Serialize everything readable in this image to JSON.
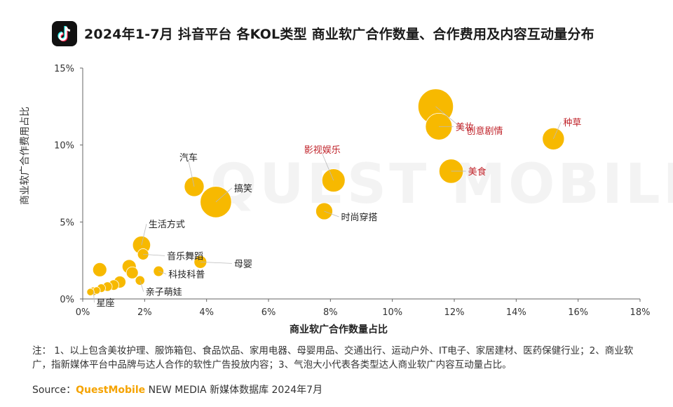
{
  "title": "2024年1-7月 抖音平台 各KOL类型 商业软广合作数量、合作费用及内容互动量分布",
  "logo_icon": "tiktok-logo-icon",
  "watermark": "QUEST MOBILE",
  "footnote": "注： 1、以上包含美妆护理、服饰箱包、食品饮品、家用电器、母婴用品、交通出行、运动户外、IT电子、家居建材、医药保健行业；2、商业软广，指新媒体平台中品牌与达人合作的软性广告投放内容；3、气泡大小代表各类型达人商业软广内容互动量占比。",
  "source": {
    "prefix": "Source：",
    "brand": "QuestMobile",
    "rest": " NEW MEDIA 新媒体数据库 2024年7月"
  },
  "colors": {
    "bubble": "#F7B900",
    "highlight_label": "#C0242B",
    "label": "#222222",
    "axis": "#666666"
  },
  "chart_data": {
    "type": "scatter",
    "xlabel": "商业软广合作数量占比",
    "ylabel": "商业软广合作费用占比",
    "xlim": [
      0,
      18
    ],
    "ylim": [
      0,
      15
    ],
    "x_ticks": [
      "0%",
      "2%",
      "4%",
      "6%",
      "8%",
      "10%",
      "12%",
      "14%",
      "16%",
      "18%"
    ],
    "y_ticks": [
      "0%",
      "5%",
      "10%",
      "15%"
    ],
    "grid": false,
    "points": [
      {
        "label": "创意剧情",
        "x": 11.4,
        "y": 12.5,
        "size": 7.0,
        "highlight": true
      },
      {
        "label": "美妆",
        "x": 11.5,
        "y": 11.2,
        "size": 4.0,
        "highlight": true
      },
      {
        "label": "种草",
        "x": 15.2,
        "y": 10.4,
        "size": 2.7,
        "highlight": true
      },
      {
        "label": "美食",
        "x": 11.9,
        "y": 8.3,
        "size": 3.3,
        "highlight": true
      },
      {
        "label": "影视娱乐",
        "x": 8.1,
        "y": 7.7,
        "size": 3.0,
        "highlight": true
      },
      {
        "label": "时尚穿搭",
        "x": 7.8,
        "y": 5.7,
        "size": 1.6,
        "highlight": false
      },
      {
        "label": "汽车",
        "x": 3.6,
        "y": 7.3,
        "size": 2.2,
        "highlight": false
      },
      {
        "label": "搞笑",
        "x": 4.3,
        "y": 6.3,
        "size": 5.5,
        "highlight": false
      },
      {
        "label": "生活方式",
        "x": 1.9,
        "y": 3.5,
        "size": 1.8,
        "highlight": false
      },
      {
        "label": "音乐舞蹈",
        "x": 1.95,
        "y": 2.9,
        "size": 0.7,
        "highlight": false
      },
      {
        "label": "母婴",
        "x": 3.8,
        "y": 2.4,
        "size": 0.9,
        "highlight": false
      },
      {
        "label": "科技科普",
        "x": 2.45,
        "y": 1.8,
        "size": 0.6,
        "highlight": false
      },
      {
        "label": "亲子萌娃",
        "x": 1.85,
        "y": 1.2,
        "size": 0.5,
        "highlight": false
      },
      {
        "label": "星座",
        "x": 0.35,
        "y": 0.5,
        "size": 0.4,
        "highlight": false
      },
      {
        "label": "",
        "x": 0.55,
        "y": 1.9,
        "size": 1.1,
        "highlight": false
      },
      {
        "label": "",
        "x": 1.5,
        "y": 2.1,
        "size": 1.1,
        "highlight": false
      },
      {
        "label": "",
        "x": 1.6,
        "y": 1.7,
        "size": 0.8,
        "highlight": false
      },
      {
        "label": "",
        "x": 1.2,
        "y": 1.1,
        "size": 0.8,
        "highlight": false
      },
      {
        "label": "",
        "x": 1.0,
        "y": 0.9,
        "size": 0.6,
        "highlight": false
      },
      {
        "label": "",
        "x": 0.8,
        "y": 0.8,
        "size": 0.5,
        "highlight": false
      },
      {
        "label": "",
        "x": 0.6,
        "y": 0.7,
        "size": 0.4,
        "highlight": false
      },
      {
        "label": "",
        "x": 0.45,
        "y": 0.55,
        "size": 0.3,
        "highlight": false
      },
      {
        "label": "",
        "x": 0.25,
        "y": 0.45,
        "size": 0.3,
        "highlight": false
      }
    ]
  }
}
